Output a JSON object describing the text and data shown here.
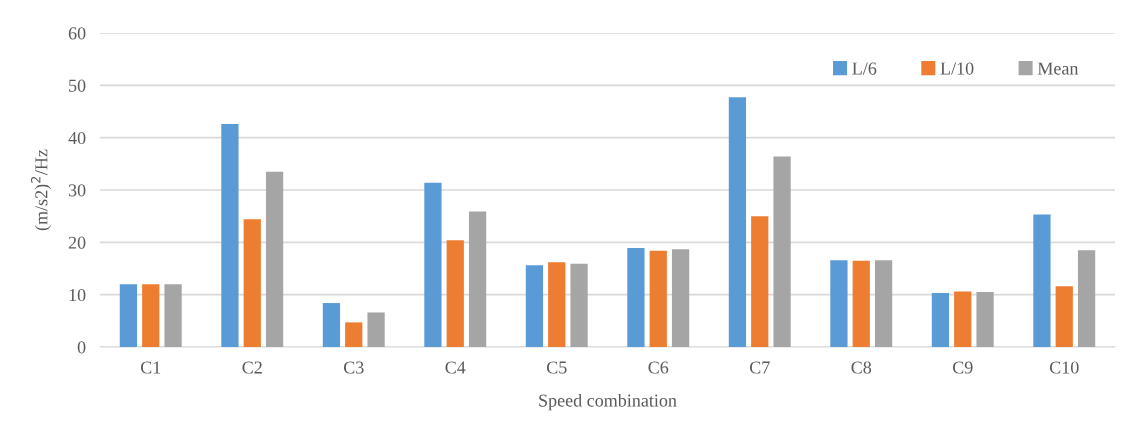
{
  "chart_data": {
    "type": "bar",
    "xlabel": "Speed combination",
    "ylabel": "(m/s2)$^{2}$/Hz",
    "categories": [
      "C1",
      "C2",
      "C3",
      "C4",
      "C5",
      "C6",
      "C7",
      "C8",
      "C9",
      "C10"
    ],
    "series": [
      {
        "name": "L/6",
        "color": "#5b9bd5",
        "values": [
          12.0,
          42.6,
          8.4,
          31.4,
          15.6,
          18.9,
          47.7,
          16.6,
          10.3,
          25.3
        ]
      },
      {
        "name": "L/10",
        "color": "#ed7d31",
        "values": [
          12.0,
          24.4,
          4.7,
          20.4,
          16.2,
          18.4,
          25.0,
          16.5,
          10.6,
          11.6
        ]
      },
      {
        "name": "Mean",
        "color": "#a5a5a5",
        "values": [
          12.0,
          33.5,
          6.6,
          25.9,
          15.9,
          18.7,
          36.4,
          16.6,
          10.5,
          18.5
        ]
      }
    ],
    "ylim": [
      0,
      60
    ],
    "yticks": [
      0,
      10,
      20,
      30,
      40,
      50,
      60
    ],
    "grid": "y",
    "legend": "top right"
  }
}
